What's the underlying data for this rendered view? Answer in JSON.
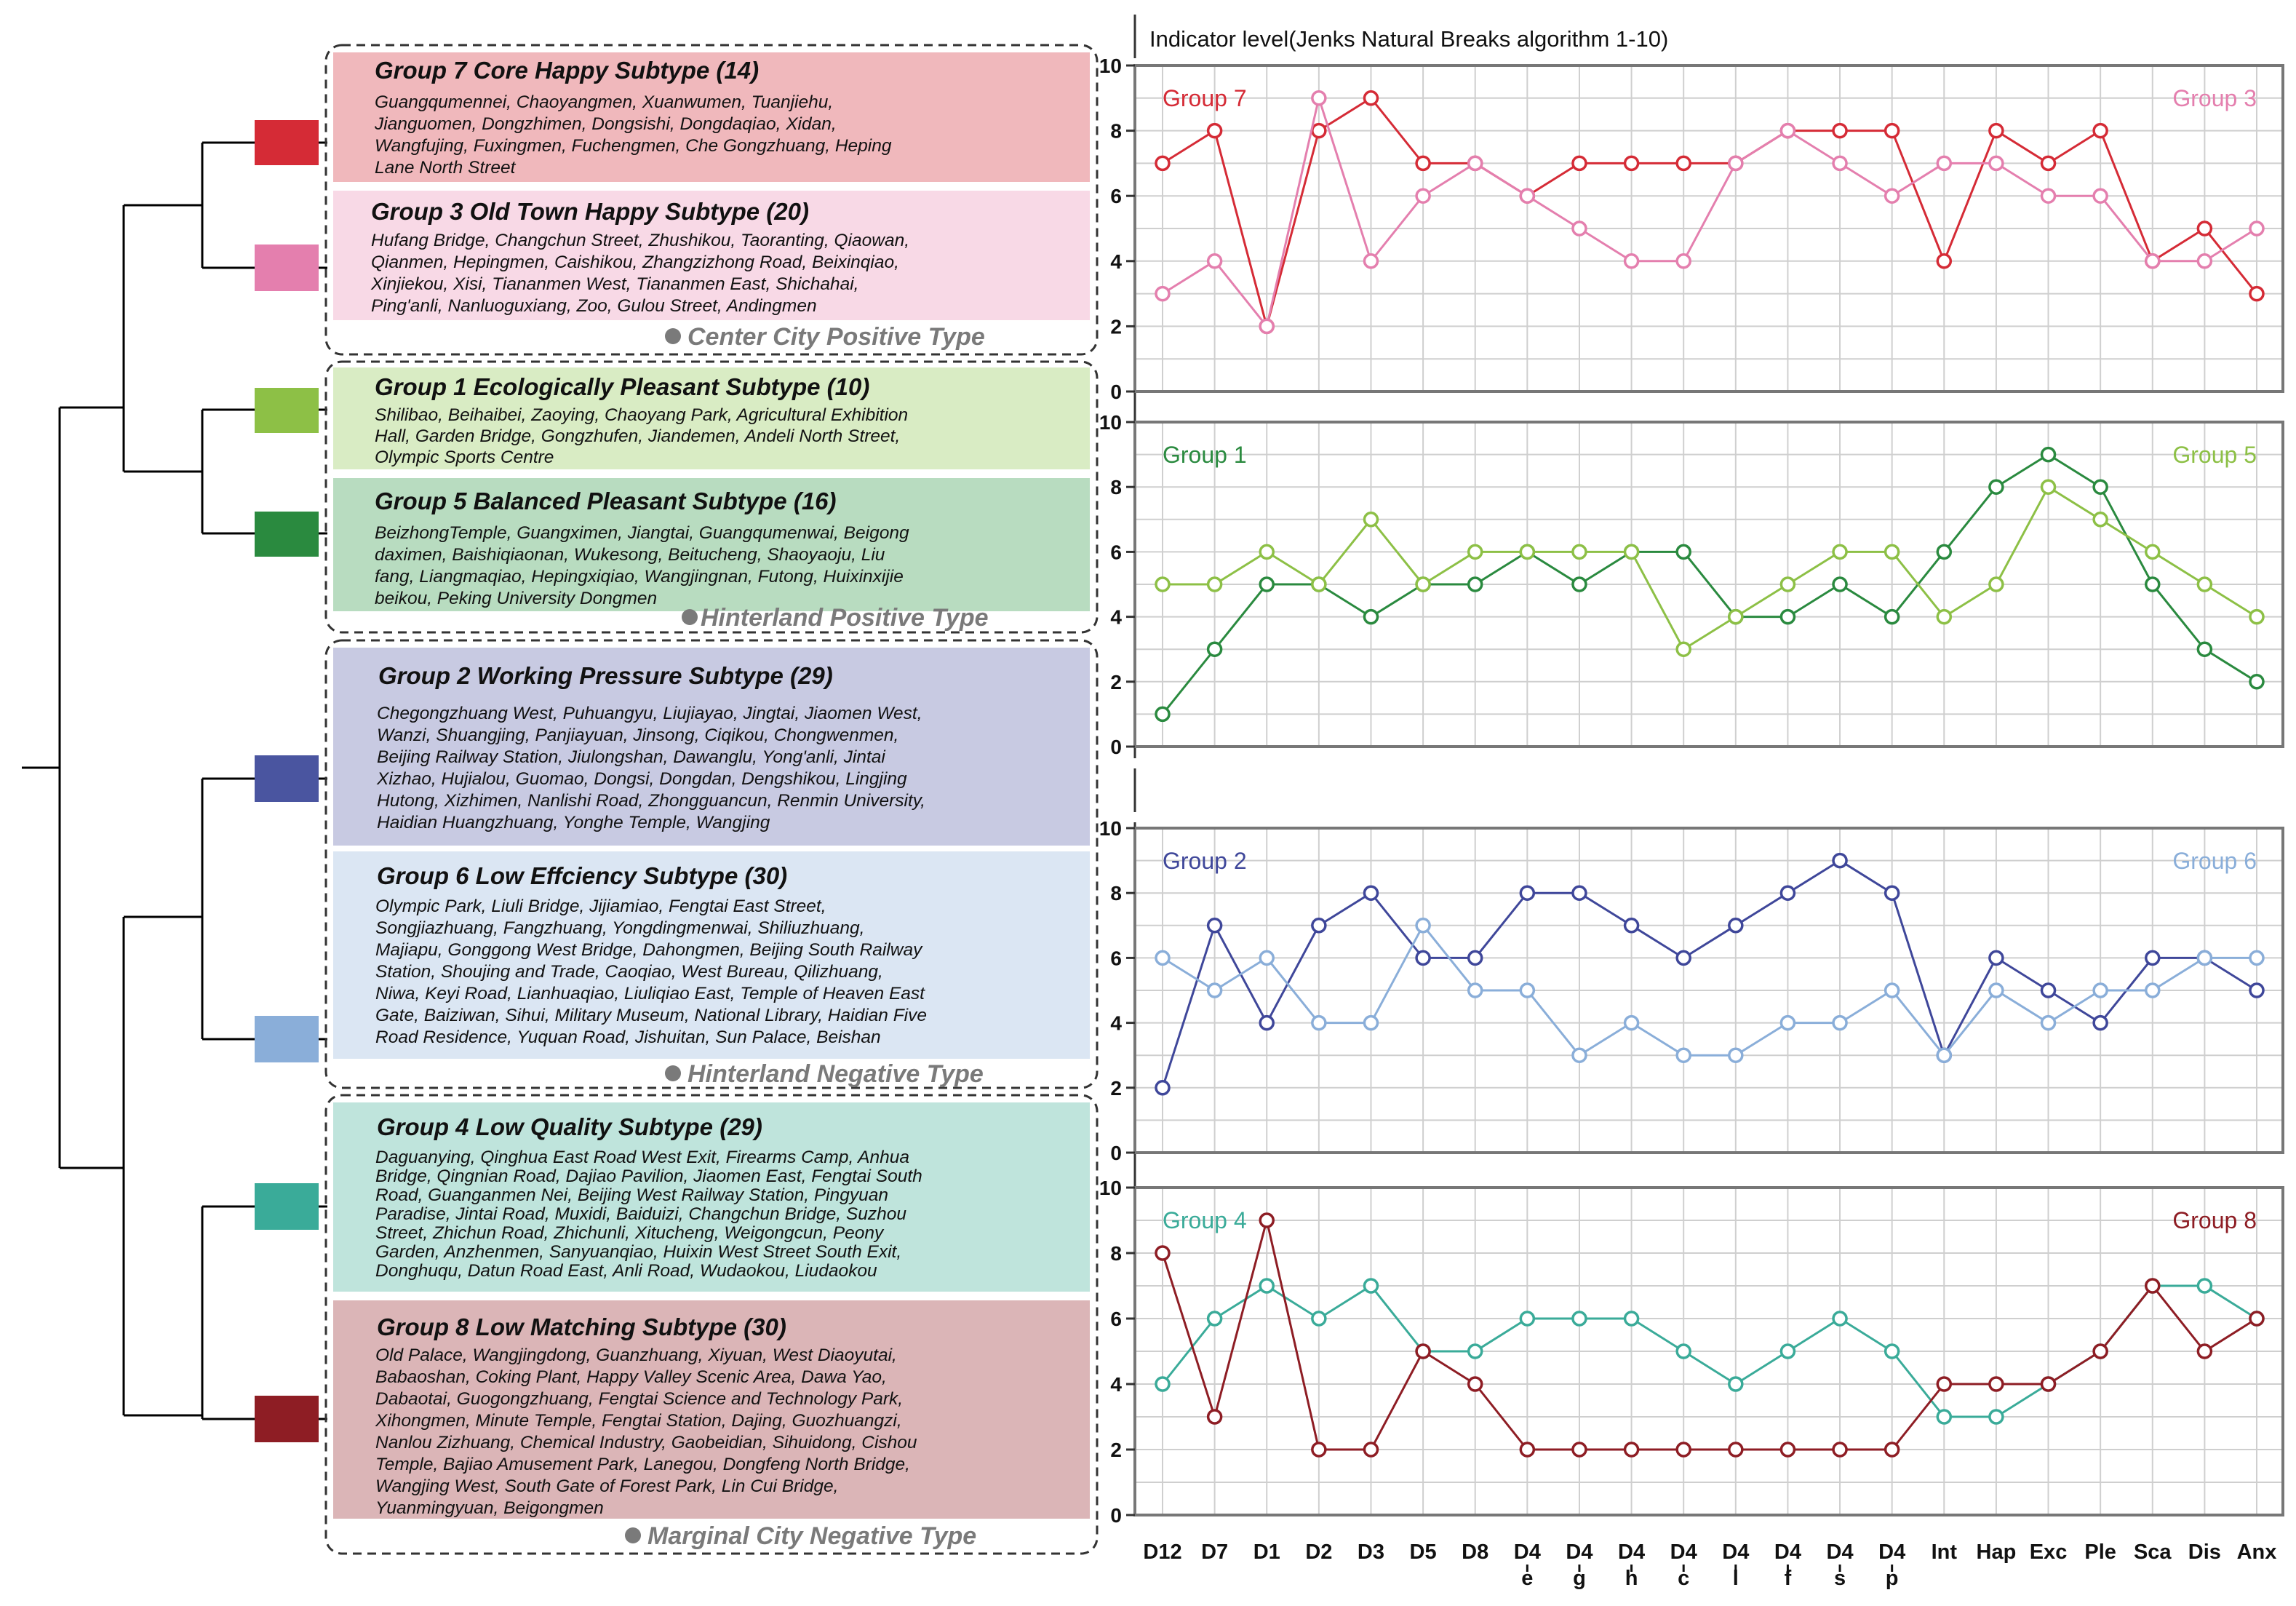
{
  "axis_title": "Indicator level(Jenks Natural Breaks algorithm 1-10)",
  "categories": [
    "Center City Positive Type",
    "Hinterland Positive Type",
    "Hinterland Negative Type",
    "Marginal City Negative Type"
  ],
  "groups": [
    {
      "title": "Group 7   Core Happy Subtype (14)",
      "color": "#d52b36",
      "bg": "#f0b8bc",
      "members": [
        "Guangqumennei, Chaoyangmen, Xuanwumen, Tuanjiehu,",
        "Jianguomen, Dongzhimen, Dongsishi, Dongdaqiao, Xidan,",
        "Wangfujing, Fuxingmen, Fuchengmen, Che Gongzhuang, Heping",
        "Lane North Street"
      ]
    },
    {
      "title": "Group 3   Old Town Happy Subtype (20)",
      "color": "#e47fae",
      "bg": "#f8d9e6",
      "members": [
        "Hufang Bridge, Changchun Street, Zhushikou, Taoranting, Qiaowan,",
        "Qianmen, Hepingmen, Caishikou, Zhangzizhong Road, Beixinqiao,",
        "Xinjiekou, Xisi, Tiananmen West, Tiananmen East, Shichahai,",
        "Ping'anli, Nanluoguxiang, Zoo, Gulou Street, Andingmen"
      ]
    },
    {
      "title": "Group 1   Ecologically Pleasant Subtype (10)",
      "color": "#8dc046",
      "bg": "#d9ecc4",
      "members": [
        "Shilibao, Beihaibei, Zaoying, Chaoyang Park, Agricultural Exhibition",
        "Hall, Garden Bridge, Gongzhufen, Jiandemen, Andeli North Street,",
        "Olympic Sports Centre"
      ]
    },
    {
      "title": "Group 5   Balanced Pleasant Subtype (16)",
      "color": "#2a8a3f",
      "bg": "#b8dcc0",
      "members": [
        "BeizhongTemple, Guangximen, Jiangtai, Guangqumenwai, Beigong",
        "daximen, Baishiqiaonan, Wukesong, Beitucheng, Shaoyaoju, Liu",
        "fang, Liangmaqiao, Hepingxiqiao, Wangjingnan, Futong, Huixinxijie",
        "beikou, Peking University Dongmen"
      ]
    },
    {
      "title": "Group 2 Working Pressure Subtype (29)",
      "color": "#4a55a0",
      "bg": "#c8cae2",
      "members": [
        "Chegongzhuang West, Puhuangyu, Liujiayao, Jingtai, Jiaomen West,",
        "Wanzi, Shuangjing, Panjiayuan, Jinsong, Ciqikou, Chongwenmen,",
        "Beijing Railway Station, Jiulongshan, Dawanglu, Yong'anli, Jintai",
        "Xizhao, Hujialou, Guomao, Dongsi, Dongdan, Dengshikou, Lingjing",
        "Hutong, Xizhimen, Nanlishi Road, Zhongguancun, Renmin University,",
        "Haidian Huangzhuang, Yonghe Temple, Wangjing"
      ]
    },
    {
      "title": "Group 6   Low Effciency Subtype (30)",
      "color": "#8aaed9",
      "bg": "#dbe6f3",
      "members": [
        "Olympic Park, Liuli Bridge, Jijiamiao, Fengtai East Street,",
        "Songjiazhuang, Fangzhuang, Yongdingmenwai, Shiliuzhuang,",
        "Majiapu, Gonggong West Bridge, Dahongmen, Beijing South Railway",
        "Station, Shoujing and Trade, Caoqiao, West Bureau, Qilizhuang,",
        "Niwa, Keyi Road, Lianhuaqiao, Liuliqiao East, Temple of Heaven East",
        "Gate, Baiziwan, Sihui, Military Museum, National Library, Haidian Five",
        "Road Residence, Yuquan Road, Jishuitan, Sun Palace, Beishan"
      ]
    },
    {
      "title": "Group 4   Low Quality Subtype (29)",
      "color": "#3aab99",
      "bg": "#bfe4dc",
      "members": [
        "Daguanying, Qinghua East Road West Exit, Firearms Camp, Anhua",
        "Bridge, Qingnian Road, Dajiao Pavilion, Jiaomen East, Fengtai South",
        "Road, Guanganmen Nei, Beijing West Railway Station, Pingyuan",
        "Paradise, Jintai Road, Muxidi, Baiduizi, Changchun Bridge, Suzhou",
        "Street, Zhichun Road, Zhichunli, Xitucheng, Weigongcun, Peony",
        "Garden, Anzhenmen, Sanyuanqiao, Huixin West Street South Exit,",
        "Donghuqu, Datun Road East, Anli Road, Wudaokou, Liudaokou"
      ]
    },
    {
      "title": "Group 8   Low Matching Subtype (30)",
      "color": "#8e1d24",
      "bg": "#dbb5b7",
      "members": [
        "Old Palace, Wangjingdong, Guanzhuang, Xiyuan, West Diaoyutai,",
        "Babaoshan, Coking Plant, Happy Valley Scenic Area, Dawa Yao,",
        "Dabaotai, Guogongzhuang, Fengtai Science and Technology Park,",
        "Xihongmen, Minute Temple, Fengtai Station, Dajing, Guozhuangzi,",
        "Nanlou Zizhuang, Chemical Industry, Gaobeidian, Sihuidong, Cishou",
        "Temple, Bajiao Amusement Park, Lanegou, Dongfeng North Bridge,",
        "Wangjing West, South Gate of Forest Park, Lin Cui Bridge,",
        "Yuanmingyuan, Beigongmen"
      ]
    }
  ],
  "chart_data": {
    "type": "line",
    "title": "Indicator level(Jenks Natural Breaks algorithm 1-10)",
    "categories": [
      "D12",
      "D7",
      "D1",
      "D2",
      "D3",
      "D5",
      "D8",
      "D4 e",
      "D4 g",
      "D4 h",
      "D4 c",
      "D4 l",
      "D4 f",
      "D4 s",
      "D4 p",
      "Int",
      "Hap",
      "Exc",
      "Ple",
      "Sca",
      "Dis",
      "Anx"
    ],
    "x_tick_labels": [
      [
        "D12"
      ],
      [
        "D7"
      ],
      [
        "D1"
      ],
      [
        "D2"
      ],
      [
        "D3"
      ],
      [
        "D5"
      ],
      [
        "D8"
      ],
      [
        "D4",
        "e"
      ],
      [
        "D4",
        "g"
      ],
      [
        "D4",
        "h"
      ],
      [
        "D4",
        "c"
      ],
      [
        "D4",
        "l"
      ],
      [
        "D4",
        "f"
      ],
      [
        "D4",
        "s"
      ],
      [
        "D4",
        "p"
      ],
      [
        "Int"
      ],
      [
        "Hap"
      ],
      [
        "Exc"
      ],
      [
        "Ple"
      ],
      [
        "Sca"
      ],
      [
        "Dis"
      ],
      [
        "Anx"
      ]
    ],
    "ylim": [
      0,
      10
    ],
    "y_ticks": [
      "0",
      "2",
      "4",
      "6",
      "8",
      "10"
    ],
    "panels": [
      {
        "series": [
          {
            "name": "Group 7",
            "color": "#d52b36",
            "label_pos": "left",
            "values": [
              7,
              8,
              2,
              8,
              9,
              7,
              7,
              6,
              7,
              7,
              7,
              7,
              8,
              8,
              8,
              4,
              8,
              7,
              8,
              4,
              5,
              3
            ]
          },
          {
            "name": "Group 3",
            "color": "#e47fae",
            "label_pos": "right",
            "values": [
              3,
              4,
              2,
              9,
              4,
              6,
              7,
              6,
              5,
              4,
              4,
              7,
              8,
              7,
              6,
              7,
              7,
              6,
              6,
              4,
              4,
              5
            ]
          }
        ]
      },
      {
        "series": [
          {
            "name": "Group 1",
            "color": "#2a8a3f",
            "label_pos": "left",
            "values": [
              1,
              3,
              5,
              5,
              4,
              5,
              5,
              6,
              5,
              6,
              6,
              4,
              4,
              5,
              4,
              6,
              8,
              9,
              8,
              5,
              3,
              2
            ]
          },
          {
            "name": "Group 5",
            "color": "#8dc046",
            "label_pos": "right",
            "values": [
              5,
              5,
              6,
              5,
              7,
              5,
              6,
              6,
              6,
              6,
              3,
              4,
              5,
              6,
              6,
              4,
              5,
              8,
              7,
              6,
              5,
              4
            ]
          }
        ]
      },
      {
        "series": [
          {
            "name": "Group 2",
            "color": "#3f479a",
            "label_pos": "left",
            "values": [
              2,
              7,
              4,
              7,
              8,
              6,
              6,
              8,
              8,
              7,
              6,
              7,
              8,
              9,
              8,
              3,
              6,
              5,
              4,
              6,
              6,
              5
            ]
          },
          {
            "name": "Group 6",
            "color": "#8aaed9",
            "label_pos": "right",
            "values": [
              6,
              5,
              6,
              4,
              4,
              7,
              5,
              5,
              3,
              4,
              3,
              3,
              4,
              4,
              5,
              3,
              5,
              4,
              5,
              5,
              6,
              6
            ]
          }
        ]
      },
      {
        "series": [
          {
            "name": "Group 4",
            "color": "#3aab99",
            "label_pos": "left",
            "values": [
              4,
              6,
              7,
              6,
              7,
              5,
              5,
              6,
              6,
              6,
              5,
              4,
              5,
              6,
              5,
              3,
              3,
              4,
              5,
              7,
              7,
              6
            ]
          },
          {
            "name": "Group 8",
            "color": "#8e1d24",
            "label_pos": "right",
            "values": [
              8,
              3,
              9,
              2,
              2,
              5,
              4,
              2,
              2,
              2,
              2,
              2,
              2,
              2,
              2,
              4,
              4,
              4,
              5,
              7,
              5,
              6
            ]
          }
        ]
      }
    ]
  }
}
